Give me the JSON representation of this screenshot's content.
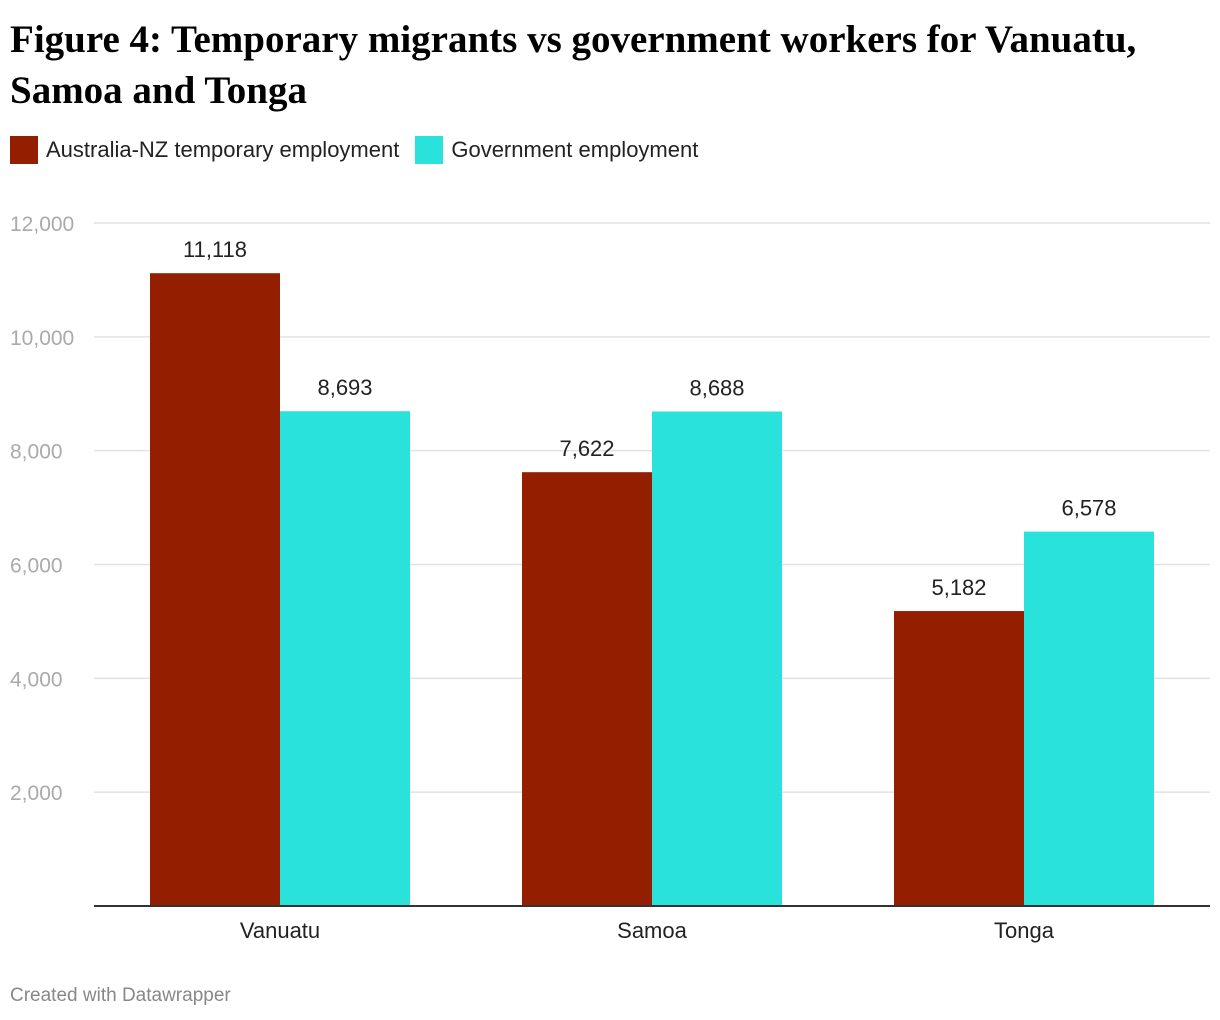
{
  "title": "Figure 4: Temporary migrants vs government workers for Vanuatu, Samoa and Tonga",
  "credit": "Created with Datawrapper",
  "chart_data": {
    "type": "bar",
    "categories": [
      "Vanuatu",
      "Samoa",
      "Tonga"
    ],
    "series": [
      {
        "name": "Australia-NZ temporary employment",
        "color": "#931e00",
        "values": [
          11118,
          7622,
          5182
        ],
        "labels": [
          "11,118",
          "7,622",
          "5,182"
        ]
      },
      {
        "name": "Government employment",
        "color": "#29e2db",
        "values": [
          8693,
          8688,
          6578
        ],
        "labels": [
          "8,693",
          "8,688",
          "6,578"
        ]
      }
    ],
    "ylim": [
      0,
      12000
    ],
    "yticks": [
      2000,
      4000,
      6000,
      8000,
      10000,
      12000
    ],
    "ytick_labels": [
      "2,000",
      "4,000",
      "6,000",
      "8,000",
      "10,000",
      "12,000"
    ],
    "grid": true,
    "legend": "top-left"
  }
}
